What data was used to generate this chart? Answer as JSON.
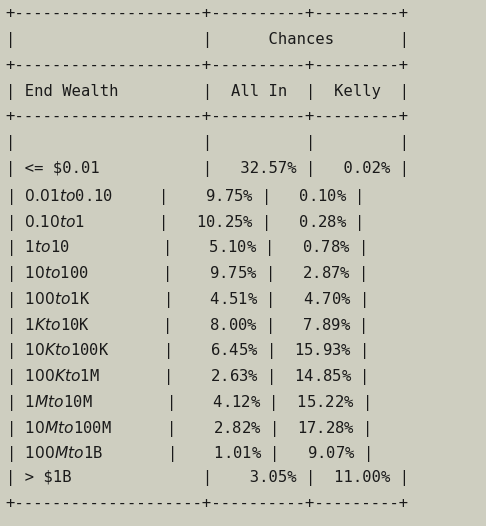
{
  "bg_color": "#cecec0",
  "text_color": "#1a1a1a",
  "font_family": "monospace",
  "header_row": [
    "End Wealth",
    "All In",
    "Kelly"
  ],
  "rows": [
    [
      "<= $0.01",
      "32.57%",
      " 0.02%"
    ],
    [
      "$0.01 to $0.10",
      " 9.75%",
      " 0.10%"
    ],
    [
      "$0.10 to $1",
      "10.25%",
      " 0.28%"
    ],
    [
      "$1 to $10",
      " 5.10%",
      " 0.78%"
    ],
    [
      "$10 to $100",
      " 9.75%",
      " 2.87%"
    ],
    [
      "$100 to $1K",
      " 4.51%",
      " 4.70%"
    ],
    [
      "$1K to $10K",
      " 8.00%",
      " 7.89%"
    ],
    [
      "$10K to $100K",
      " 6.45%",
      "15.93%"
    ],
    [
      "$100K to $1M",
      " 2.63%",
      "14.85%"
    ],
    [
      "$1M to $10M",
      " 4.12%",
      "15.22%"
    ],
    [
      "$10M to $100M",
      " 2.82%",
      "17.28%"
    ],
    [
      "$100M to $1B",
      " 1.01%",
      " 9.07%"
    ],
    [
      "> $1B",
      " 3.05%",
      "11.00%"
    ]
  ],
  "figsize": [
    4.86,
    5.26
  ],
  "dpi": 100,
  "font_size": 11.2
}
